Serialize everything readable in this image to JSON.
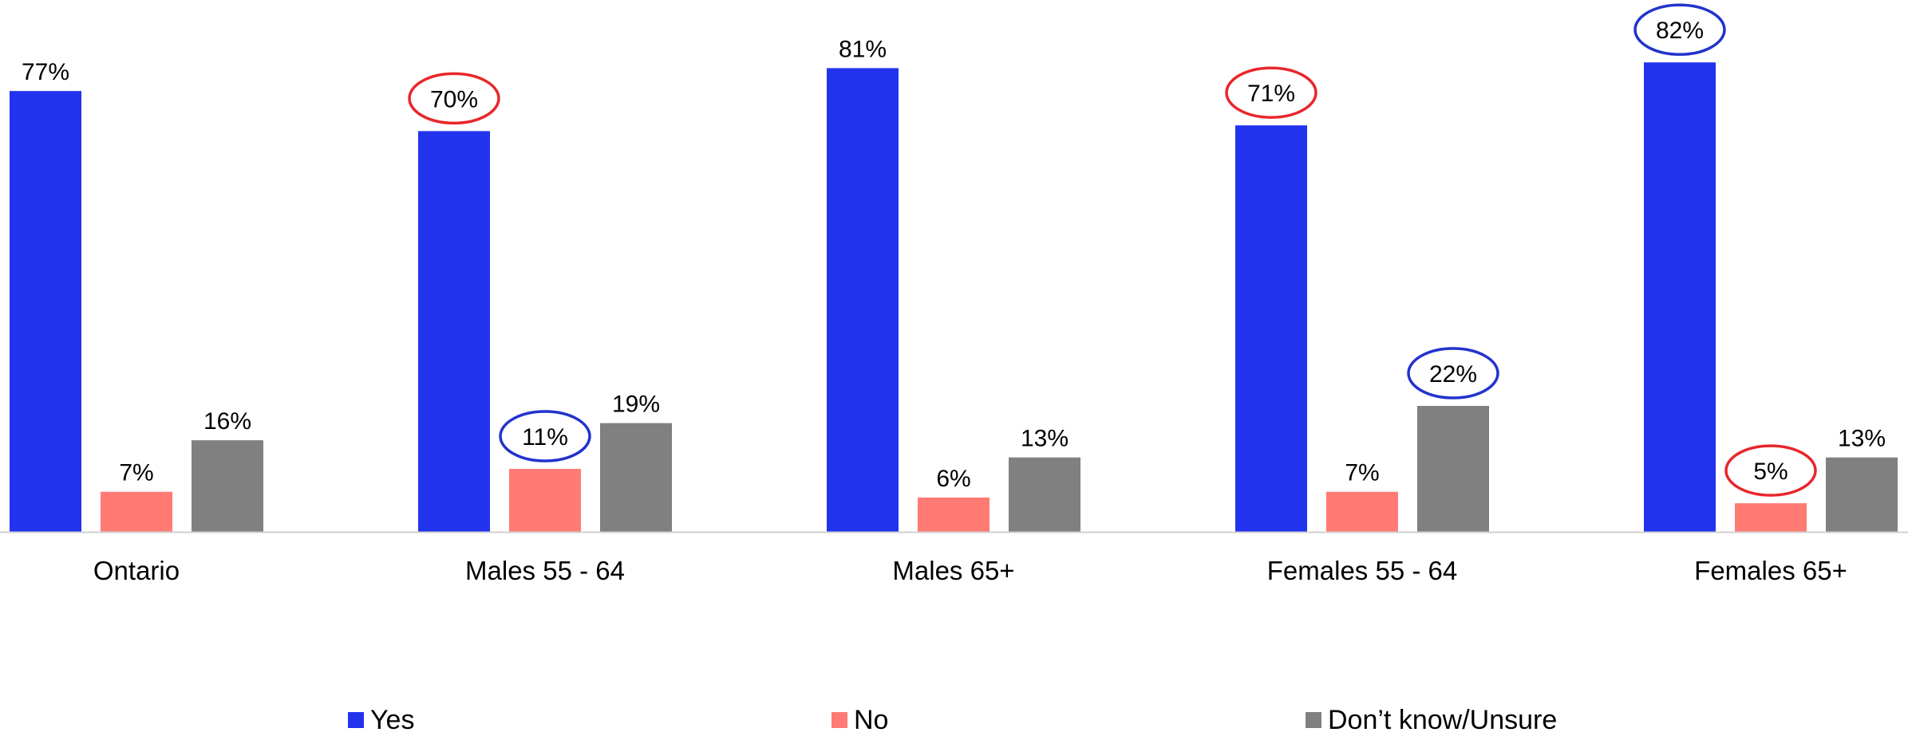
{
  "chart_data": {
    "type": "bar",
    "title": "",
    "xlabel": "",
    "ylabel": "",
    "ylim": [
      0,
      90
    ],
    "grid": false,
    "legend_position": "bottom",
    "categories": [
      "Ontario",
      "Males 55 - 64",
      "Males 65+",
      "Females 55 - 64",
      "Females 65+"
    ],
    "series": [
      {
        "name": "Yes",
        "color": "#2233ee",
        "values": [
          77,
          70,
          81,
          71,
          82
        ],
        "labels": [
          "77%",
          "70%",
          "81%",
          "71%",
          "82%"
        ]
      },
      {
        "name": "No",
        "color": "#ff7b74",
        "values": [
          7,
          11,
          6,
          7,
          5
        ],
        "labels": [
          "7%",
          "11%",
          "6%",
          "7%",
          "5%"
        ]
      },
      {
        "name": "Don’t know/Unsure",
        "color": "#808080",
        "values": [
          16,
          19,
          13,
          22,
          13
        ],
        "labels": [
          "16%",
          "19%",
          "13%",
          "22%",
          "13%"
        ]
      }
    ],
    "highlights": [
      {
        "series": 0,
        "category": 1,
        "color": "#e8262b"
      },
      {
        "series": 1,
        "category": 1,
        "color": "#2233cc"
      },
      {
        "series": 0,
        "category": 3,
        "color": "#e8262b"
      },
      {
        "series": 2,
        "category": 3,
        "color": "#2233cc"
      },
      {
        "series": 0,
        "category": 4,
        "color": "#2233cc"
      },
      {
        "series": 1,
        "category": 4,
        "color": "#e8262b"
      }
    ],
    "axis_color": "#d0d0d0"
  }
}
